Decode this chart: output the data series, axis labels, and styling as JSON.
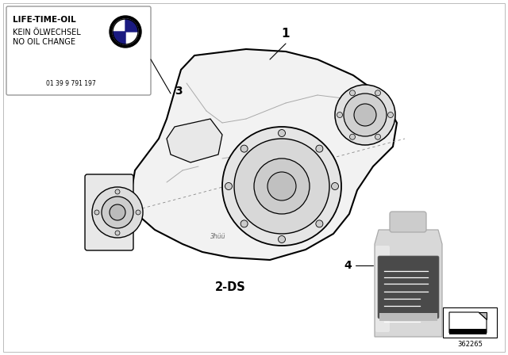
{
  "background_color": "#ffffff",
  "label_box_text_line1": "LIFE-TIME-OIL",
  "label_box_text_line2": "KEIN ÖLWECHSEL",
  "label_box_text_line3": "NO OIL CHANGE",
  "label_box_part_number": "01 39 9 791 197",
  "label_1": "1",
  "label_2": "2-DS",
  "label_3": "3",
  "label_4": "4",
  "part_number": "362265"
}
